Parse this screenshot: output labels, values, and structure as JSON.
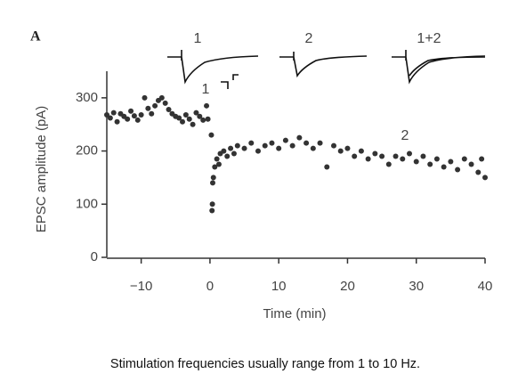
{
  "chart_data": {
    "type": "scatter",
    "panel_label": "A",
    "x_label": "Time (min)",
    "y_label": "EPSC amplitude (pA)",
    "caption": "Stimulation frequencies usually range from 1 to 10 Hz.",
    "annotations": [
      "1",
      "2",
      "1+2",
      "1",
      "2"
    ],
    "xlim": [
      -15,
      40
    ],
    "ylim": [
      0,
      350
    ],
    "xticks": [
      {
        "value": -10,
        "label": "−10"
      },
      0,
      10,
      20,
      30,
      40
    ],
    "yticks": [
      0,
      100,
      200,
      300
    ],
    "color": "#333333",
    "x": [
      -15,
      -14.5,
      -14,
      -13.5,
      -13,
      -12.5,
      -12,
      -11.5,
      -11,
      -10.5,
      -10,
      -9.5,
      -9,
      -8.5,
      -8,
      -7.5,
      -7,
      -6.5,
      -6,
      -5.5,
      -5,
      -4.5,
      -4,
      -3.5,
      -3,
      -2.5,
      -2,
      -1.5,
      -1,
      -0.5,
      -0.3,
      0.2,
      0.3,
      0.35,
      0.4,
      0.5,
      0.7,
      1,
      1.3,
      1.5,
      2,
      2.5,
      3,
      3.5,
      4,
      5,
      6,
      7,
      8,
      9,
      10,
      11,
      12,
      13,
      14,
      15,
      16,
      17,
      18,
      19,
      20,
      21,
      22,
      23,
      24,
      25,
      26,
      27,
      28,
      29,
      30,
      31,
      32,
      33,
      34,
      35,
      36,
      37,
      38,
      39,
      39.5,
      40
    ],
    "values": [
      268,
      262,
      272,
      255,
      270,
      265,
      260,
      275,
      266,
      258,
      268,
      300,
      280,
      270,
      285,
      295,
      300,
      290,
      278,
      270,
      265,
      262,
      255,
      268,
      260,
      250,
      272,
      265,
      258,
      285,
      260,
      230,
      88,
      100,
      140,
      150,
      170,
      185,
      175,
      195,
      200,
      190,
      205,
      195,
      210,
      205,
      215,
      200,
      210,
      215,
      205,
      220,
      210,
      225,
      215,
      205,
      215,
      170,
      210,
      200,
      205,
      190,
      200,
      185,
      195,
      190,
      175,
      190,
      185,
      195,
      180,
      190,
      175,
      185,
      170,
      180,
      165,
      185,
      175,
      160,
      185,
      150
    ]
  }
}
